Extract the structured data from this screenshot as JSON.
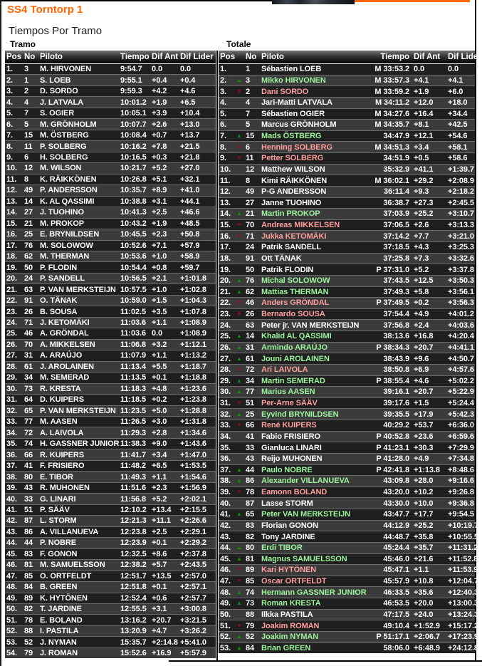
{
  "page": {
    "title": "SS4 Torntorp 1",
    "subtitle": "Tiempos Por Tramo",
    "left_section_label": "Tramo",
    "right_section_label": "Totale"
  },
  "colors": {
    "accent_orange": "#ff6600",
    "gain_name_green": "#9cf59c",
    "loss_name_red": "#ff9e9e",
    "up_arrow_green": "#158a15",
    "down_arrow_red": "#8b1010",
    "row_dark": "#1f1f1f",
    "row_light": "#3b3b3b"
  },
  "icons": {
    "up": "▲",
    "down": "▼"
  },
  "columns": {
    "pos": "Pos",
    "no": "No",
    "piloto": "Piloto",
    "tiempo": "Tiempo",
    "dif_ant": "Dif Ant",
    "dif_lider": "Dif Lider"
  },
  "stage_table": {
    "rows": [
      [
        "1.",
        "3",
        "M. HIRVONEN",
        "9:54.7",
        "0.0",
        "0.0"
      ],
      [
        "2.",
        "1",
        "S. LOEB",
        "9:55.1",
        "+0.4",
        "+0.4"
      ],
      [
        "3.",
        "2",
        "D. SORDO",
        "9:59.3",
        "+4.2",
        "+4.6"
      ],
      [
        "4.",
        "4",
        "J. LATVALA",
        "10:01.2",
        "+1.9",
        "+6.5"
      ],
      [
        "5.",
        "7",
        "S. OGIER",
        "10:05.1",
        "+3.9",
        "+10.4"
      ],
      [
        "6.",
        "5",
        "M. GRÖNHOLM",
        "10:07.7",
        "+2.6",
        "+13.0"
      ],
      [
        "7.",
        "15",
        "M. ÖSTBERG",
        "10:08.4",
        "+0.7",
        "+13.7"
      ],
      [
        "8.",
        "11",
        "P. SOLBERG",
        "10:16.2",
        "+7.8",
        "+21.5"
      ],
      [
        "9.",
        "6",
        "H. SOLBERG",
        "10:16.5",
        "+0.3",
        "+21.8"
      ],
      [
        "10.",
        "12",
        "M. WILSON",
        "10:21.7",
        "+5.2",
        "+27.0"
      ],
      [
        "11.",
        "8",
        "K. RÄIKKÖNEN",
        "10:26.8",
        "+5.1",
        "+32.1"
      ],
      [
        "12.",
        "49",
        "P. ANDERSSON",
        "10:35.7",
        "+8.9",
        "+41.0"
      ],
      [
        "13.",
        "14",
        "K. AL QASSIMI",
        "10:38.8",
        "+3.1",
        "+44.1"
      ],
      [
        "14.",
        "27",
        "J. TUOHINO",
        "10:41.3",
        "+2.5",
        "+46.6"
      ],
      [
        "15.",
        "21",
        "M. PROKOP",
        "10:43.2",
        "+1.9",
        "+48.5"
      ],
      [
        "16.",
        "25",
        "E. BRYNILDSEN",
        "10:45.5",
        "+2.3",
        "+50.8"
      ],
      [
        "17.",
        "76",
        "M. SOLOWOW",
        "10:52.6",
        "+7.1",
        "+57.9"
      ],
      [
        "18.",
        "62",
        "M. THERMAN",
        "10:53.6",
        "+1.0",
        "+58.9"
      ],
      [
        "19.",
        "50",
        "P. FLODIN",
        "10:54.4",
        "+0.8",
        "+59.7"
      ],
      [
        "20.",
        "24",
        "P. SANDELL",
        "10:56.5",
        "+2.1",
        "+1:01.8"
      ],
      [
        "21.",
        "63",
        "P. VAN MERKSTEIJN",
        "10:57.5",
        "+1.0",
        "+1:02.8"
      ],
      [
        "22.",
        "91",
        "O. TÄNAK",
        "10:59.0",
        "+1.5",
        "+1:04.3"
      ],
      [
        "23.",
        "26",
        "B. SOUSA",
        "11:02.5",
        "+3.5",
        "+1:07.8"
      ],
      [
        "24.",
        "71",
        "J. KETOMÄKI",
        "11:03.6",
        "+1.1",
        "+1:08.9"
      ],
      [
        "25.",
        "46",
        "A. GRÖNDAL",
        "11:03.6",
        "0.0",
        "+1:08.9"
      ],
      [
        "26.",
        "70",
        "A. MIKKELSEN",
        "11:06.8",
        "+3.2",
        "+1:12.1"
      ],
      [
        "27.",
        "31",
        "A. ARAÚJO",
        "11:07.9",
        "+1.1",
        "+1:13.2"
      ],
      [
        "28.",
        "61",
        "J. AROLAINEN",
        "11:13.4",
        "+5.5",
        "+1:18.7"
      ],
      [
        "29.",
        "34",
        "M. SEMERAD",
        "11:13.5",
        "+0.1",
        "+1:18.8"
      ],
      [
        "30.",
        "73",
        "R. KRESTA",
        "11:18.3",
        "+4.8",
        "+1:23.6"
      ],
      [
        "31.",
        "64",
        "D. KUIPERS",
        "11:18.5",
        "+0.2",
        "+1:23.8"
      ],
      [
        "32.",
        "65",
        "P. VAN MERKSTEIJN",
        "11:23.5",
        "+5.0",
        "+1:28.8"
      ],
      [
        "33.",
        "77",
        "M. AASEN",
        "11:26.5",
        "+3.0",
        "+1:31.8"
      ],
      [
        "34.",
        "72",
        "A. LAIVOLA",
        "11:29.3",
        "+2.8",
        "+1:34.6"
      ],
      [
        "35.",
        "74",
        "H. GASSNER JUNIOR",
        "11:38.3",
        "+9.0",
        "+1:43.6"
      ],
      [
        "36.",
        "66",
        "R. KUIPERS",
        "11:41.7",
        "+3.4",
        "+1:47.0"
      ],
      [
        "37.",
        "41",
        "F. FRISIERO",
        "11:48.2",
        "+6.5",
        "+1:53.5"
      ],
      [
        "38.",
        "80",
        "E. TIBOR",
        "11:49.3",
        "+1.1",
        "+1:54.6"
      ],
      [
        "39.",
        "43",
        "R. MUHONEN",
        "11:51.6",
        "+2.3",
        "+1:56.9"
      ],
      [
        "40.",
        "33",
        "G. LINARI",
        "11:56.8",
        "+5.2",
        "+2:02.1"
      ],
      [
        "41.",
        "51",
        "P. SÄÄV",
        "12:10.2",
        "+13.4",
        "+2:15.5"
      ],
      [
        "42.",
        "87",
        "L. STORM",
        "12:21.3",
        "+11.1",
        "+2:26.6"
      ],
      [
        "43.",
        "86",
        "A. VILLANUEVA",
        "12:23.8",
        "+2.5",
        "+2:29.1"
      ],
      [
        "44.",
        "44",
        "P. NOBRE",
        "12:23.9",
        "+0.1",
        "+2:29.2"
      ],
      [
        "45.",
        "83",
        "F. GONON",
        "12:32.5",
        "+8.6",
        "+2:37.8"
      ],
      [
        "46.",
        "81",
        "M. SAMUELSSON",
        "12:38.2",
        "+5.7",
        "+2:43.5"
      ],
      [
        "47.",
        "85",
        "O. ORTFELDT",
        "12:51.7",
        "+13.5",
        "+2:57.0"
      ],
      [
        "48.",
        "84",
        "B. GREEN",
        "12:51.8",
        "+0.1",
        "+2:57.1"
      ],
      [
        "49.",
        "89",
        "K. HYTÖNEN",
        "12:52.4",
        "+0.6",
        "+2:57.7"
      ],
      [
        "50.",
        "82",
        "T. JARDINE",
        "12:55.5",
        "+3.1",
        "+3:00.8"
      ],
      [
        "51.",
        "78",
        "E. BOLAND",
        "13:16.2",
        "+20.7",
        "+3:21.5"
      ],
      [
        "52.",
        "88",
        "I. PASTILA",
        "13:20.9",
        "+4.7",
        "+3:26.2"
      ],
      [
        "53.",
        "52",
        "J. NYMAN",
        "15:35.7",
        "+2:14.8",
        "+5:41.0"
      ],
      [
        "54.",
        "79",
        "J. ROMAN",
        "15:52.6",
        "+16.9",
        "+5:57.9"
      ]
    ]
  },
  "total_table": {
    "rows": [
      [
        "1.",
        "",
        "1",
        "Sébastien LOEB",
        "w",
        "M",
        "33:53.2",
        "0.0",
        "0.0"
      ],
      [
        "2.",
        "u",
        "3",
        "Mikko HIRVONEN",
        "g",
        "M",
        "33:57.3",
        "+4.1",
        "+4.1"
      ],
      [
        "3.",
        "d",
        "2",
        "Dani SORDO",
        "r",
        "M",
        "33:59.2",
        "+1.9",
        "+6.0"
      ],
      [
        "4.",
        "",
        "4",
        "Jari-Matti LATVALA",
        "w",
        "M",
        "34:11.2",
        "+12.0",
        "+18.0"
      ],
      [
        "5.",
        "",
        "7",
        "Sébastien OGIER",
        "w",
        "M",
        "34:27.6",
        "+16.4",
        "+34.4"
      ],
      [
        "6.",
        "",
        "5",
        "Marcus GRÖNHOLM",
        "w",
        "M",
        "34:35.7",
        "+8.1",
        "+42.5"
      ],
      [
        "7.",
        "u",
        "15",
        "Mads ÖSTBERG",
        "g",
        "",
        "34:47.9",
        "+12.1",
        "+54.6"
      ],
      [
        "8.",
        "d",
        "6",
        "Henning SOLBERG",
        "r",
        "M",
        "34:51.3",
        "+3.4",
        "+58.1"
      ],
      [
        "9.",
        "d",
        "11",
        "Petter SOLBERG",
        "r",
        "",
        "34:51.9",
        "+0.5",
        "+58.6"
      ],
      [
        "10.",
        "",
        "12",
        "Matthew WILSON",
        "w",
        "",
        "35:32.9",
        "+41.1",
        "+1:39.7"
      ],
      [
        "11.",
        "",
        "8",
        "Kimi RÄIKKÖNEN",
        "w",
        "M",
        "36:02.1",
        "+29.2",
        "+2:08.9"
      ],
      [
        "12.",
        "",
        "49",
        "P-G ANDERSSON",
        "w",
        "",
        "36:11.4",
        "+9.3",
        "+2:18.2"
      ],
      [
        "13.",
        "",
        "27",
        "Janne TUOHINO",
        "w",
        "",
        "36:38.7",
        "+27.3",
        "+2:45.5"
      ],
      [
        "14.",
        "u",
        "21",
        "Martin PROKOP",
        "g",
        "",
        "37:03.9",
        "+25.2",
        "+3:10.7"
      ],
      [
        "15.",
        "d",
        "70",
        "Andreas MIKKELSEN",
        "r",
        "",
        "37:06.5",
        "+2.6",
        "+3:13.3"
      ],
      [
        "16.",
        "d",
        "71",
        "Jukka KETOMÄKI",
        "r",
        "",
        "37:14.2",
        "+7.7",
        "+3:21.0"
      ],
      [
        "17.",
        "",
        "24",
        "Patrik SANDELL",
        "w",
        "",
        "37:18.5",
        "+4.3",
        "+3:25.3"
      ],
      [
        "18.",
        "",
        "91",
        "Ott TÄNAK",
        "w",
        "",
        "37:25.8",
        "+7.3",
        "+3:32.6"
      ],
      [
        "19.",
        "",
        "50",
        "Patrik FLODIN",
        "w",
        "P",
        "37:31.0",
        "+5.2",
        "+3:37.8"
      ],
      [
        "20.",
        "u",
        "76",
        "Michal SOLOWOW",
        "g",
        "",
        "37:43.5",
        "+12.5",
        "+3:50.3"
      ],
      [
        "21.",
        "u",
        "62",
        "Mattias THERMAN",
        "g",
        "",
        "37:49.3",
        "+5.8",
        "+3:56.1"
      ],
      [
        "22.",
        "d",
        "46",
        "Anders GRÖNDAL",
        "r",
        "P",
        "37:49.5",
        "+0.2",
        "+3:56.3"
      ],
      [
        "23.",
        "d",
        "26",
        "Bernardo SOUSA",
        "r",
        "",
        "37:54.4",
        "+4.9",
        "+4:01.2"
      ],
      [
        "24.",
        "",
        "63",
        "Peter jr. VAN MERKSTEIJN",
        "w",
        "",
        "37:56.8",
        "+2.4",
        "+4:03.6"
      ],
      [
        "25.",
        "u",
        "14",
        "Khalid AL QASSIMI",
        "g",
        "",
        "38:13.6",
        "+16.8",
        "+4:20.4"
      ],
      [
        "26.",
        "u",
        "31",
        "Armindo ARAÚJO",
        "g",
        "P",
        "38:34.3",
        "+20.7",
        "+4:41.1"
      ],
      [
        "27.",
        "u",
        "61",
        "Jouni AROLAINEN",
        "g",
        "",
        "38:43.9",
        "+9.6",
        "+4:50.7"
      ],
      [
        "28.",
        "d",
        "72",
        "Ari LAIVOLA",
        "r",
        "",
        "38:50.8",
        "+6.9",
        "+4:57.6"
      ],
      [
        "29.",
        "u",
        "34",
        "Martin SEMERAD",
        "g",
        "P",
        "38:55.4",
        "+4.6",
        "+5:02.2"
      ],
      [
        "30.",
        "u",
        "77",
        "Marius AASEN",
        "g",
        "",
        "39:16.1",
        "+20.7",
        "+5:22.9"
      ],
      [
        "31.",
        "d",
        "51",
        "Per-Arne SÄÄV",
        "r",
        "",
        "39:17.6",
        "+1.5",
        "+5:24.4"
      ],
      [
        "32.",
        "u",
        "25",
        "Eyvind BRYNILDSEN",
        "g",
        "",
        "39:35.5",
        "+17.9",
        "+5:42.3"
      ],
      [
        "33.",
        "d",
        "66",
        "René KUIPERS",
        "r",
        "",
        "40:29.2",
        "+53.7",
        "+6:36.0"
      ],
      [
        "34.",
        "",
        "41",
        "Fabio FRISIERO",
        "w",
        "P",
        "40:52.8",
        "+23.6",
        "+6:59.6"
      ],
      [
        "35.",
        "",
        "33",
        "Gianluca LINARI",
        "w",
        "P",
        "41:23.1",
        "+30.3",
        "+7:29.9"
      ],
      [
        "36.",
        "",
        "43",
        "Reijo MUHONEN",
        "w",
        "P",
        "41:28.0",
        "+4.9",
        "+7:34.8"
      ],
      [
        "37.",
        "u",
        "44",
        "Paulo NOBRE",
        "g",
        "P",
        "42:41.8",
        "+1:13.8",
        "+8:48.6"
      ],
      [
        "38.",
        "u",
        "86",
        "Alexander VILLANUEVA",
        "g",
        "",
        "43:09.8",
        "+28.0",
        "+9:16.6"
      ],
      [
        "39.",
        "d",
        "78",
        "Eamonn BOLAND",
        "r",
        "",
        "43:20.0",
        "+10.2",
        "+9:26.8"
      ],
      [
        "40.",
        "",
        "87",
        "Lasse STORM",
        "w",
        "",
        "43:30.0",
        "+10.0",
        "+9:36.8"
      ],
      [
        "41.",
        "u",
        "65",
        "Peter VAN MERKSTEIJN",
        "g",
        "",
        "43:47.7",
        "+17.7",
        "+9:54.5"
      ],
      [
        "42.",
        "",
        "83",
        "Florian GONON",
        "w",
        "",
        "44:12.9",
        "+25.2",
        "+10:19.7"
      ],
      [
        "43.",
        "",
        "82",
        "Tony JARDINE",
        "w",
        "",
        "44:48.7",
        "+35.8",
        "+10:55.5"
      ],
      [
        "44.",
        "u",
        "80",
        "Erdi TIBOR",
        "g",
        "",
        "45:24.4",
        "+35.7",
        "+11:31.2"
      ],
      [
        "45.",
        "u",
        "81",
        "Magnus SAMUELSSON",
        "g",
        "",
        "45:46.0",
        "+21.6",
        "+11:52.8"
      ],
      [
        "46.",
        "d",
        "89",
        "Kari HYTÖNEN",
        "r",
        "",
        "45:47.1",
        "+1.1",
        "+11:53.9"
      ],
      [
        "47.",
        "d",
        "85",
        "Oscar ORTFELDT",
        "r",
        "",
        "45:57.9",
        "+10.8",
        "+12:04.7"
      ],
      [
        "48.",
        "u",
        "74",
        "Hermann GASSNER JUNIOR",
        "g",
        "",
        "46:33.5",
        "+35.6",
        "+12:40.3"
      ],
      [
        "49.",
        "u",
        "73",
        "Roman KRESTA",
        "g",
        "",
        "46:53.5",
        "+20.0",
        "+13:00.3"
      ],
      [
        "50.",
        "",
        "88",
        "Ilkka PASTILA",
        "w",
        "",
        "47:17.5",
        "+24.0",
        "+13:24.3"
      ],
      [
        "51.",
        "d",
        "79",
        "Joakim ROMAN",
        "r",
        "",
        "49:10.4",
        "+1:52.9",
        "+15:17.2"
      ],
      [
        "52.",
        "u",
        "52",
        "Joakim NYMAN",
        "g",
        "P",
        "51:17.1",
        "+2:06.7",
        "+17:23.9"
      ],
      [
        "53.",
        "u",
        "84",
        "Brian GREEN",
        "g",
        "",
        "58:06.0",
        "+6:48.9",
        "+24:12.8"
      ]
    ]
  }
}
